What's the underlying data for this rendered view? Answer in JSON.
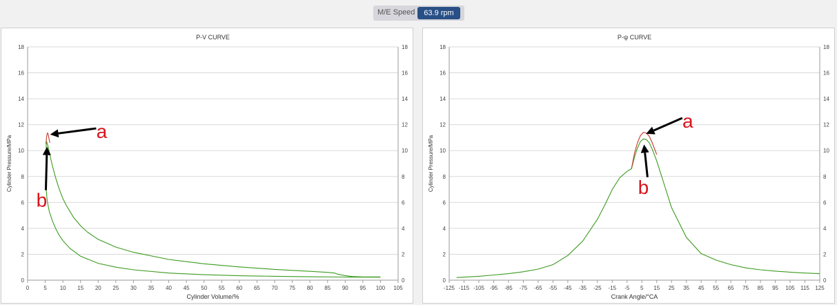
{
  "header": {
    "speed_label": "M/E Speed",
    "speed_value": "63.9 rpm"
  },
  "chart_data": [
    {
      "type": "line",
      "title": "P-V CURVE",
      "xlabel": "Cylinder Volume/%",
      "ylabel": "Cylinder Pressure/MPa",
      "xlim": [
        0,
        105
      ],
      "ylim": [
        0,
        18
      ],
      "xticks": [
        0,
        5,
        10,
        15,
        20,
        25,
        30,
        35,
        40,
        45,
        50,
        55,
        60,
        65,
        70,
        75,
        80,
        85,
        90,
        95,
        100,
        105
      ],
      "yticks": [
        0,
        2,
        4,
        6,
        8,
        10,
        12,
        14,
        16,
        18
      ],
      "grid": "horizontal",
      "series": [
        {
          "color": "#3a9a1e",
          "x": [
            100,
            95,
            92,
            90,
            88,
            87,
            85,
            80,
            70,
            60,
            50,
            40,
            30,
            25,
            20,
            17,
            15,
            13,
            11,
            10,
            9,
            8,
            7,
            6.5,
            6,
            5.7,
            5.5,
            5.4,
            5.3,
            5.2,
            5.3,
            5.5,
            5.8,
            6.2,
            7,
            8,
            9,
            10,
            12,
            15,
            20,
            25,
            30,
            40,
            50,
            60,
            70,
            80,
            90,
            100
          ],
          "y": [
            0.25,
            0.25,
            0.28,
            0.35,
            0.45,
            0.55,
            0.6,
            0.68,
            0.83,
            1.02,
            1.26,
            1.6,
            2.15,
            2.55,
            3.15,
            3.7,
            4.2,
            4.85,
            5.75,
            6.3,
            7.0,
            7.85,
            8.85,
            9.45,
            10.05,
            10.4,
            10.6,
            10.7,
            10.72,
            7.6,
            6.9,
            6.3,
            5.75,
            5.25,
            4.6,
            3.95,
            3.45,
            3.05,
            2.45,
            1.85,
            1.3,
            1.0,
            0.8,
            0.55,
            0.42,
            0.34,
            0.3,
            0.26,
            0.24,
            0.23
          ]
        },
        {
          "color": "#c0392b",
          "x": [
            5.2,
            5.4,
            5.6,
            5.8,
            6.0,
            6.3
          ],
          "y": [
            10.5,
            11.1,
            11.35,
            11.3,
            11.0,
            10.6
          ]
        }
      ],
      "annotations": [
        {
          "text": "a",
          "x": 21,
          "y": 11.5
        },
        {
          "text": "b",
          "x": 4,
          "y": 6.2
        }
      ]
    },
    {
      "type": "line",
      "title": "P-ψ CURVE",
      "xlabel": "Crank Angle/°CA",
      "ylabel": "Cylinder Pressure/MPa",
      "xlim": [
        -125,
        125
      ],
      "ylim": [
        0,
        18
      ],
      "xticks": [
        -125,
        -115,
        -105,
        -95,
        -85,
        -75,
        -65,
        -55,
        -45,
        -35,
        -25,
        -15,
        -5,
        5,
        15,
        25,
        35,
        45,
        55,
        65,
        75,
        85,
        95,
        105,
        115,
        125
      ],
      "yticks": [
        0,
        2,
        4,
        6,
        8,
        10,
        12,
        14,
        16,
        18
      ],
      "grid": "horizontal",
      "series": [
        {
          "color": "#3a9a1e",
          "x": [
            -120,
            -105,
            -95,
            -85,
            -75,
            -65,
            -55,
            -45,
            -35,
            -25,
            -20,
            -15,
            -10,
            -5,
            -2,
            0,
            2,
            4,
            6,
            8,
            10,
            12,
            15,
            20,
            25,
            35,
            45,
            55,
            65,
            75,
            85,
            95,
            105,
            115,
            125
          ],
          "y": [
            0.2,
            0.3,
            0.4,
            0.5,
            0.65,
            0.85,
            1.2,
            1.9,
            3.0,
            4.7,
            5.8,
            7.0,
            7.9,
            8.4,
            8.6,
            9.5,
            10.2,
            10.7,
            10.9,
            10.85,
            10.6,
            10.1,
            9.2,
            7.4,
            5.6,
            3.3,
            2.05,
            1.55,
            1.2,
            0.95,
            0.8,
            0.7,
            0.62,
            0.55,
            0.5
          ]
        },
        {
          "color": "#c0392b",
          "x": [
            -2,
            0,
            2,
            4,
            6,
            8,
            10,
            12,
            15
          ],
          "y": [
            8.6,
            9.8,
            10.6,
            11.15,
            11.4,
            11.35,
            11.1,
            10.6,
            9.7
          ]
        }
      ],
      "annotations": [
        {
          "text": "a",
          "x": 36,
          "y": 12.3
        },
        {
          "text": "b",
          "x": 6,
          "y": 7.2
        }
      ]
    }
  ]
}
